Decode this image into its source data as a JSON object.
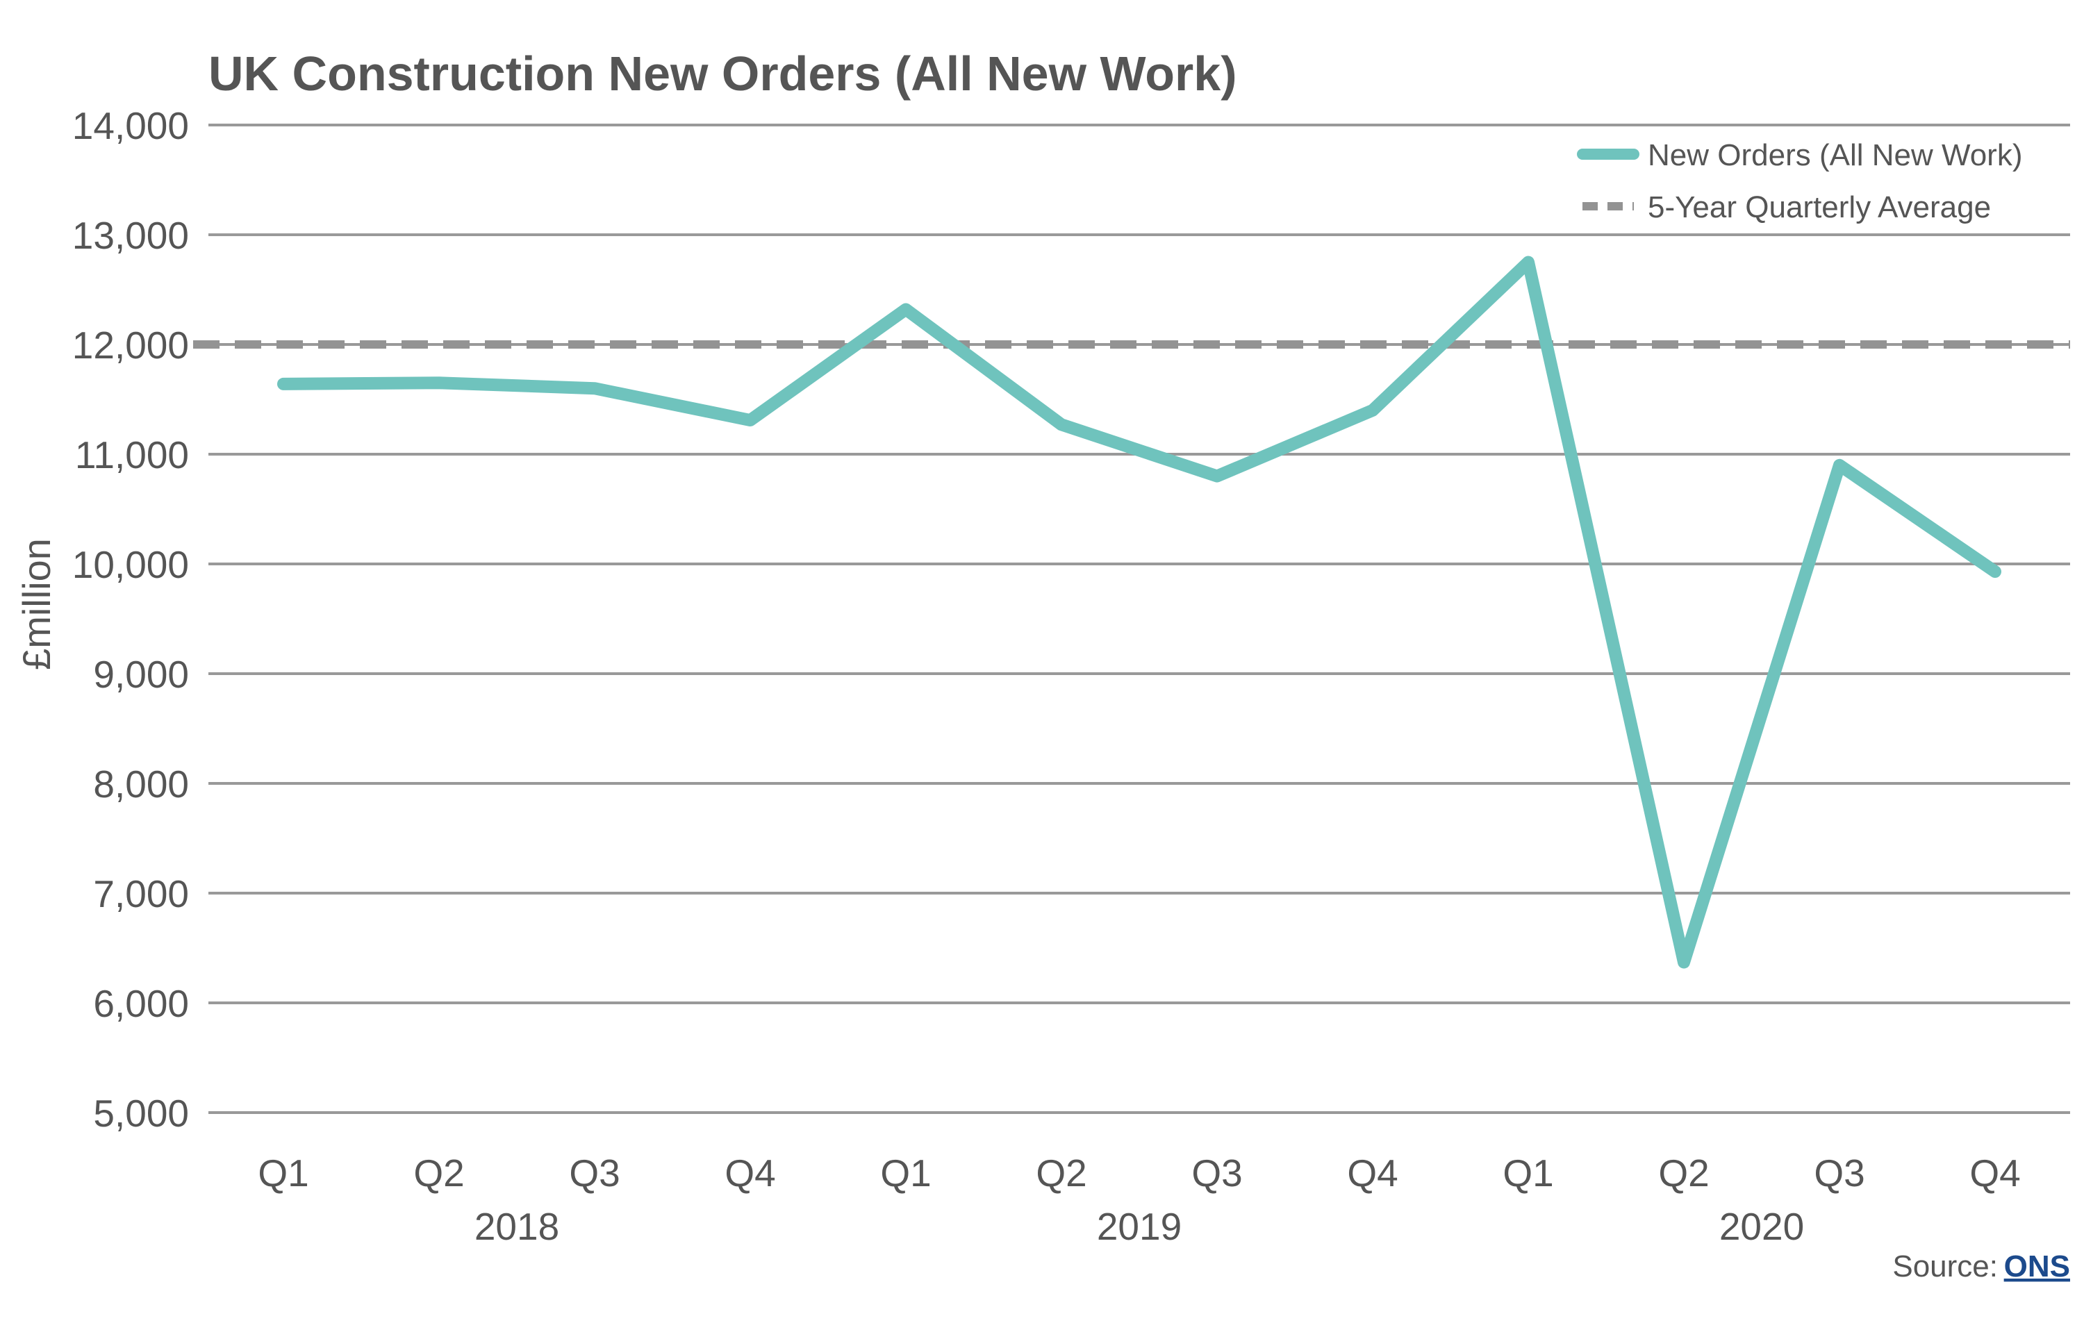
{
  "chart_data": {
    "type": "line",
    "title": "UK Construction New Orders (All New Work)",
    "xlabel": "",
    "ylabel": "£million",
    "ylim": [
      5000,
      14000
    ],
    "yticks": [
      5000,
      6000,
      7000,
      8000,
      9000,
      10000,
      11000,
      12000,
      13000,
      14000
    ],
    "ytick_labels": [
      "5,000",
      "6,000",
      "7,000",
      "8,000",
      "9,000",
      "10,000",
      "11,000",
      "12,000",
      "13,000",
      "14,000"
    ],
    "categories": [
      "Q1",
      "Q2",
      "Q3",
      "Q4",
      "Q1",
      "Q2",
      "Q3",
      "Q4",
      "Q1",
      "Q2",
      "Q3",
      "Q4"
    ],
    "years": [
      "2018",
      "2019",
      "2020"
    ],
    "grid": true,
    "legend_position": "top-right",
    "series": [
      {
        "name": "New Orders (All New Work)",
        "values": [
          11640,
          11650,
          11600,
          11310,
          12320,
          11270,
          10800,
          11400,
          12750,
          6370,
          10900,
          9930
        ],
        "color": "#6fc3bd",
        "style": "solid"
      },
      {
        "name": "5-Year Quarterly Average",
        "values": [
          12000,
          12000,
          12000,
          12000,
          12000,
          12000,
          12000,
          12000,
          12000,
          12000,
          12000,
          12000
        ],
        "color": "#939393",
        "style": "dashed"
      }
    ],
    "source_label": "Source:",
    "source_link": "ONS"
  }
}
